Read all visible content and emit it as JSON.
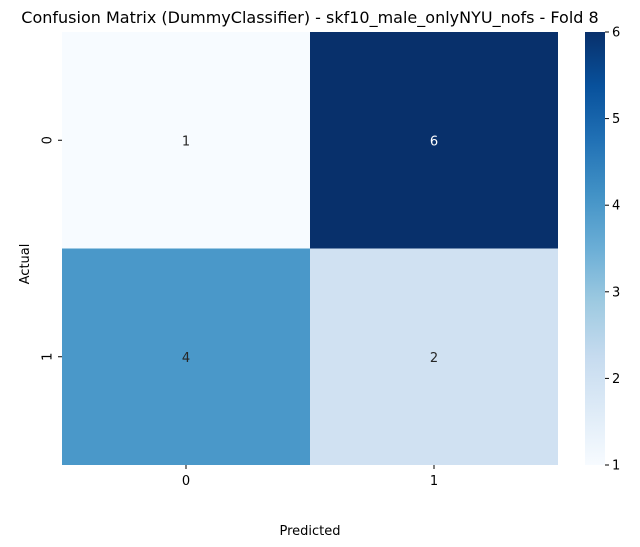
{
  "chart_data": {
    "type": "heatmap",
    "title": "Confusion Matrix (DummyClassifier) - skf10_male_onlyNYU_nofs - Fold 8",
    "xlabel": "Predicted",
    "ylabel": "Actual",
    "x_categories": [
      "0",
      "1"
    ],
    "y_categories": [
      "0",
      "1"
    ],
    "values": [
      [
        1,
        6
      ],
      [
        4,
        2
      ]
    ],
    "colormap": "Blues",
    "colorbar": {
      "min": 1,
      "max": 6,
      "ticks": [
        "1",
        "2",
        "3",
        "4",
        "5",
        "6"
      ]
    },
    "grid": false,
    "legend": "none"
  }
}
